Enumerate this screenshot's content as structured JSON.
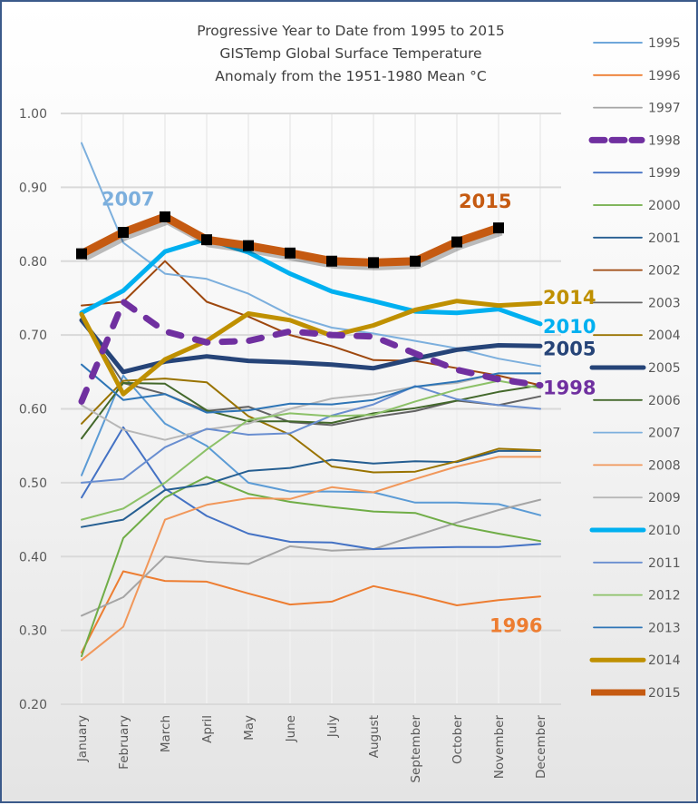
{
  "chart_data": {
    "type": "line",
    "title": [
      "Progressive Year to Date from 1995 to 2015",
      "GISTemp Global Surface Temperature",
      "Anomaly from the 1951-1980 Mean °C"
    ],
    "xlabel": "",
    "ylabel": "",
    "categories": [
      "January",
      "February",
      "March",
      "April",
      "May",
      "June",
      "July",
      "August",
      "September",
      "October",
      "November",
      "December"
    ],
    "ylim": [
      0.2,
      1.0
    ],
    "yticks": [
      "1.00",
      "0.90",
      "0.80",
      "0.70",
      "0.60",
      "0.50",
      "0.40",
      "0.30",
      "0.20"
    ],
    "ytick_values": [
      1.0,
      0.9,
      0.8,
      0.7,
      0.6,
      0.5,
      0.4,
      0.3,
      0.2
    ],
    "grid": true,
    "legend_position": "right",
    "series": [
      {
        "name": "1995",
        "color": "#5b9bd5",
        "style": "thin",
        "values": [
          0.51,
          0.645,
          0.58,
          0.55,
          0.5,
          0.488,
          0.488,
          0.487,
          0.473,
          0.473,
          0.471,
          0.456
        ]
      },
      {
        "name": "1996",
        "color": "#ed7d31",
        "style": "thin",
        "values": [
          0.27,
          0.38,
          0.367,
          0.366,
          0.35,
          0.335,
          0.339,
          0.36,
          0.348,
          0.334,
          0.341,
          0.346
        ]
      },
      {
        "name": "1997",
        "color": "#a5a5a5",
        "style": "thin",
        "values": [
          0.32,
          0.345,
          0.4,
          0.393,
          0.39,
          0.414,
          0.408,
          0.41,
          0.428,
          0.446,
          0.463,
          0.477
        ]
      },
      {
        "name": "1998",
        "color": "#7030a0",
        "style": "dashed",
        "values": [
          0.61,
          0.745,
          0.705,
          0.69,
          0.692,
          0.705,
          0.7,
          0.698,
          0.675,
          0.653,
          0.64,
          0.632
        ]
      },
      {
        "name": "1999",
        "color": "#4472c4",
        "style": "thin",
        "values": [
          0.48,
          0.575,
          0.492,
          0.455,
          0.431,
          0.42,
          0.419,
          0.41,
          0.412,
          0.413,
          0.413,
          0.417
        ]
      },
      {
        "name": "2000",
        "color": "#70ad47",
        "style": "thin",
        "values": [
          0.265,
          0.425,
          0.48,
          0.508,
          0.485,
          0.474,
          0.467,
          0.461,
          0.459,
          0.442,
          0.431,
          0.421
        ]
      },
      {
        "name": "2001",
        "color": "#255e91",
        "style": "thin",
        "values": [
          0.44,
          0.45,
          0.49,
          0.498,
          0.516,
          0.52,
          0.531,
          0.526,
          0.529,
          0.528,
          0.543,
          0.543
        ]
      },
      {
        "name": "2002",
        "color": "#9e480e",
        "style": "thin",
        "values": [
          0.74,
          0.745,
          0.8,
          0.745,
          0.725,
          0.7,
          0.685,
          0.666,
          0.665,
          0.655,
          0.645,
          0.632
        ]
      },
      {
        "name": "2003",
        "color": "#636363",
        "style": "thin",
        "values": [
          0.72,
          0.635,
          0.62,
          0.597,
          0.603,
          0.582,
          0.578,
          0.589,
          0.597,
          0.611,
          0.605,
          0.617
        ]
      },
      {
        "name": "2004",
        "color": "#997300",
        "style": "thin",
        "values": [
          0.58,
          0.638,
          0.641,
          0.636,
          0.59,
          0.565,
          0.522,
          0.514,
          0.515,
          0.529,
          0.546,
          0.544
        ]
      },
      {
        "name": "2005",
        "color": "#264478",
        "style": "thick",
        "values": [
          0.72,
          0.65,
          0.664,
          0.671,
          0.665,
          0.663,
          0.66,
          0.655,
          0.668,
          0.68,
          0.686,
          0.685
        ]
      },
      {
        "name": "2006",
        "color": "#43682b",
        "style": "thin",
        "values": [
          0.56,
          0.635,
          0.634,
          0.598,
          0.583,
          0.583,
          0.581,
          0.594,
          0.601,
          0.611,
          0.623,
          0.632
        ]
      },
      {
        "name": "2007",
        "color": "#7cafdd",
        "style": "thin",
        "values": [
          0.96,
          0.825,
          0.783,
          0.776,
          0.756,
          0.727,
          0.71,
          0.702,
          0.692,
          0.682,
          0.668,
          0.658
        ]
      },
      {
        "name": "2008",
        "color": "#f1975a",
        "style": "thin",
        "values": [
          0.26,
          0.305,
          0.45,
          0.47,
          0.479,
          0.478,
          0.494,
          0.487,
          0.505,
          0.522,
          0.535,
          0.535
        ]
      },
      {
        "name": "2009",
        "color": "#b7b7b7",
        "style": "thin",
        "values": [
          0.605,
          0.572,
          0.558,
          0.572,
          0.58,
          0.6,
          0.614,
          0.62,
          0.63,
          0.635,
          0.648,
          0.648
        ]
      },
      {
        "name": "2010",
        "color": "#00b0f0",
        "style": "thick",
        "values": [
          0.73,
          0.76,
          0.813,
          0.83,
          0.812,
          0.783,
          0.759,
          0.746,
          0.732,
          0.73,
          0.735,
          0.715
        ]
      },
      {
        "name": "2011",
        "color": "#698ed0",
        "style": "thin",
        "values": [
          0.5,
          0.505,
          0.548,
          0.573,
          0.565,
          0.567,
          0.591,
          0.606,
          0.631,
          0.613,
          0.605,
          0.6
        ]
      },
      {
        "name": "2012",
        "color": "#8cc168",
        "style": "thin",
        "values": [
          0.45,
          0.465,
          0.5,
          0.545,
          0.585,
          0.594,
          0.59,
          0.592,
          0.61,
          0.626,
          0.638,
          0.628
        ]
      },
      {
        "name": "2013",
        "color": "#2e75b6",
        "style": "thin",
        "values": [
          0.66,
          0.612,
          0.62,
          0.595,
          0.598,
          0.607,
          0.606,
          0.612,
          0.63,
          0.637,
          0.648,
          0.648
        ]
      },
      {
        "name": "2014",
        "color": "#bf9000",
        "style": "thick",
        "values": [
          0.728,
          0.62,
          0.667,
          0.692,
          0.729,
          0.72,
          0.699,
          0.713,
          0.734,
          0.746,
          0.74,
          0.743
        ]
      },
      {
        "name": "2015",
        "color": "#c55a11",
        "style": "heavy-markers",
        "values": [
          0.81,
          0.839,
          0.86,
          0.829,
          0.821,
          0.811,
          0.8,
          0.798,
          0.8,
          0.826,
          0.845,
          null
        ]
      }
    ],
    "annotations": [
      {
        "text": "2007",
        "color": "#7cafdd",
        "anchor_series": "2007",
        "anchor_month": "February",
        "placement": "upper-left"
      },
      {
        "text": "2015",
        "color": "#c55a11",
        "anchor_series": "2015",
        "anchor_month": "November",
        "placement": "above"
      },
      {
        "text": "2014",
        "color": "#bf9000",
        "anchor_series": "2014",
        "anchor_month": "December",
        "placement": "right"
      },
      {
        "text": "2010",
        "color": "#00b0f0",
        "anchor_series": "2010",
        "anchor_month": "December",
        "placement": "right"
      },
      {
        "text": "2005",
        "color": "#264478",
        "anchor_series": "2005",
        "anchor_month": "December",
        "placement": "right"
      },
      {
        "text": "1998",
        "color": "#7030a0",
        "anchor_series": "1998",
        "anchor_month": "December",
        "placement": "right"
      },
      {
        "text": "1996",
        "color": "#ed7d31",
        "anchor_series": "1996",
        "anchor_month": "November",
        "placement": "below"
      }
    ]
  }
}
